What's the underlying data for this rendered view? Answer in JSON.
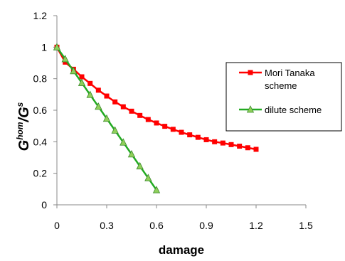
{
  "chart_data": {
    "type": "line",
    "xlabel": "damage",
    "ylabel": {
      "main": "G",
      "sup1": "hom",
      "sep": "/G",
      "sup2": "s"
    },
    "xlim": [
      0,
      1.5
    ],
    "ylim": [
      0,
      1.2
    ],
    "xticks": [
      "0",
      "0.3",
      "0.6",
      "0.9",
      "1.2",
      "1.5"
    ],
    "xtick_values": [
      0,
      0.3,
      0.6,
      0.9,
      1.2,
      1.5
    ],
    "yticks": [
      "0",
      "0.2",
      "0.4",
      "0.6",
      "0.8",
      "1",
      "1.2"
    ],
    "ytick_values": [
      0,
      0.2,
      0.4,
      0.6,
      0.8,
      1.0,
      1.2
    ],
    "grid": false,
    "legend_position": "right",
    "series": [
      {
        "name_lines": [
          "Mori Tanaka",
          "scheme"
        ],
        "color": "#ff0000",
        "marker": "square",
        "x": [
          0,
          0.05,
          0.1,
          0.15,
          0.2,
          0.25,
          0.3,
          0.35,
          0.4,
          0.45,
          0.5,
          0.55,
          0.6,
          0.65,
          0.7,
          0.75,
          0.8,
          0.85,
          0.9,
          0.95,
          1.0,
          1.05,
          1.1,
          1.15,
          1.2
        ],
        "y": [
          1.0,
          0.905,
          0.86,
          0.812,
          0.77,
          0.727,
          0.69,
          0.653,
          0.622,
          0.594,
          0.567,
          0.541,
          0.519,
          0.498,
          0.479,
          0.46,
          0.444,
          0.428,
          0.413,
          0.4,
          0.392,
          0.382,
          0.372,
          0.362,
          0.352
        ]
      },
      {
        "name_lines": [
          "dilute scheme"
        ],
        "color": "#22aa22",
        "marker": "triangle",
        "x": [
          0,
          0.05,
          0.1,
          0.15,
          0.2,
          0.25,
          0.3,
          0.35,
          0.4,
          0.45,
          0.5,
          0.55,
          0.6
        ],
        "y": [
          1.0,
          0.925,
          0.849,
          0.774,
          0.698,
          0.623,
          0.547,
          0.472,
          0.396,
          0.321,
          0.245,
          0.17,
          0.094
        ]
      }
    ]
  }
}
